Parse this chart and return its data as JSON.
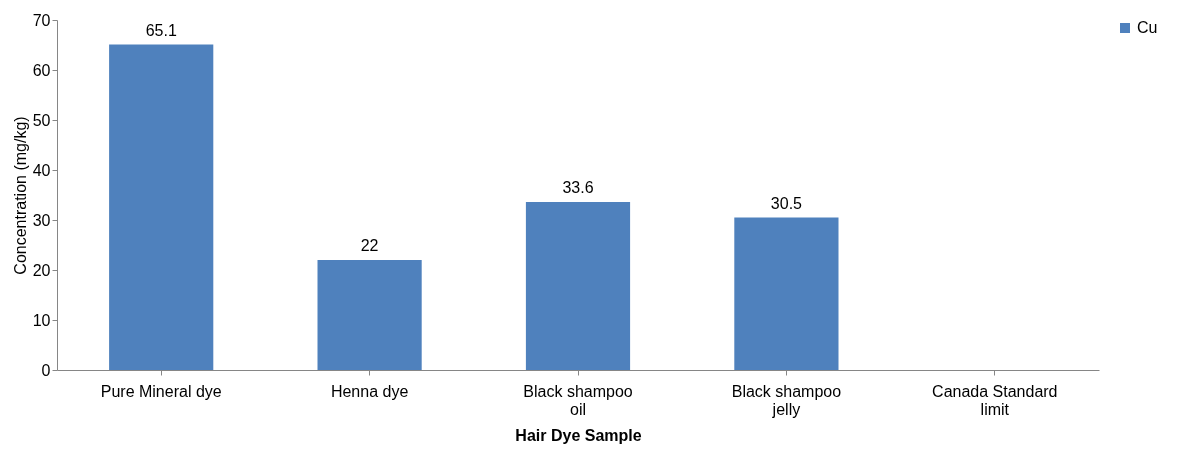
{
  "chart_data": {
    "type": "bar",
    "categories": [
      "Pure Mineral dye",
      "Henna dye",
      "Black shampoo oil",
      "Black shampoo jelly",
      "Canada Standard limit"
    ],
    "series": [
      {
        "name": "Cu",
        "color": "#4f81bd",
        "values": [
          65.1,
          22,
          33.6,
          30.5,
          null
        ]
      }
    ],
    "xlabel": "Hair Dye Sample",
    "ylabel": "Concentration (mg/kg)",
    "ylim": [
      0,
      70
    ],
    "yticks": [
      0,
      10,
      20,
      30,
      40,
      50,
      60,
      70
    ],
    "data_labels": true,
    "grid": false,
    "legend": "right"
  }
}
